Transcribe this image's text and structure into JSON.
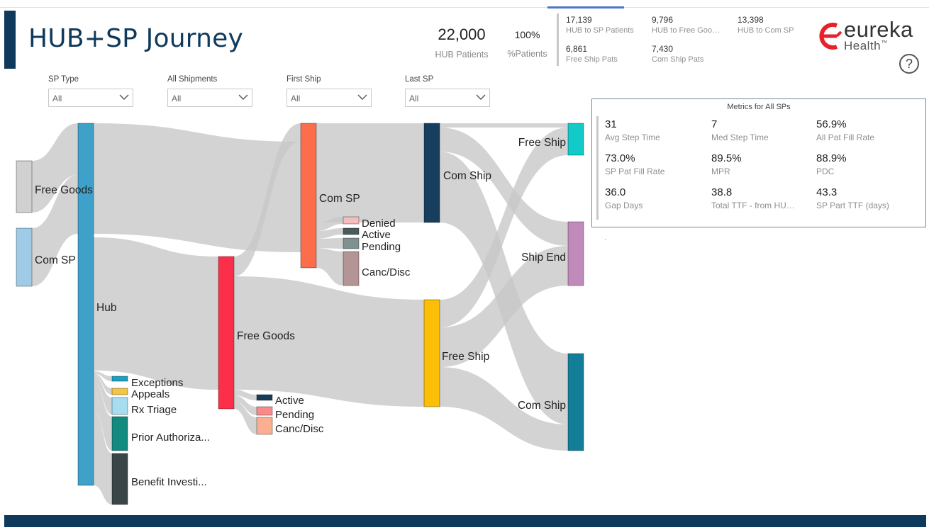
{
  "title": "HUB+SP Journey",
  "kpis": {
    "hub_patients": {
      "value": "22,000",
      "label": "HUB Patients"
    },
    "pct_patients": {
      "value": "100%",
      "label": "%Patients"
    },
    "small": [
      {
        "value": "17,139",
        "label": "HUB to SP Patients"
      },
      {
        "value": "9,796",
        "label": "HUB to Free Goo…"
      },
      {
        "value": "13,398",
        "label": "HUB to Com SP"
      },
      {
        "value": "6,861",
        "label": "Free Ship Pats"
      },
      {
        "value": "7,430",
        "label": "Com Ship Pats"
      }
    ]
  },
  "logo": {
    "line1": "eureka",
    "line2": "Health",
    "tm": "™"
  },
  "help_icon": "?",
  "slicers": [
    {
      "label": "SP Type",
      "value": "All"
    },
    {
      "label": "All Shipments",
      "value": "All"
    },
    {
      "label": "First Ship",
      "value": "All"
    },
    {
      "label": "Last SP",
      "value": "All"
    }
  ],
  "metrics": {
    "title": "Metrics for All SPs",
    "items": [
      {
        "value": "31",
        "label": "Avg Step Time"
      },
      {
        "value": "7",
        "label": "Med Step Time"
      },
      {
        "value": "56.9%",
        "label": "All Pat Fill Rate"
      },
      {
        "value": "73.0%",
        "label": "SP Pat Fill Rate"
      },
      {
        "value": "89.5%",
        "label": "MPR"
      },
      {
        "value": "88.9%",
        "label": "PDC"
      },
      {
        "value": "36.0",
        "label": "Gap Days"
      },
      {
        "value": "38.8",
        "label": "Total TTF - from HU…"
      },
      {
        "value": "43.3",
        "label": "SP Part TTF (days)"
      }
    ]
  },
  "stray_mark": "·",
  "colors": {
    "brand": "#0f3a5c",
    "link": "#c8c8c8",
    "logo_red": "#e8202a"
  },
  "chart_data": {
    "type": "sankey",
    "nodes": [
      {
        "id": "free_goods_src",
        "label": "Free Goods",
        "color": "#d0d0d0"
      },
      {
        "id": "com_sp_src",
        "label": "Com SP",
        "color": "#9fcbe6"
      },
      {
        "id": "hub",
        "label": "Hub",
        "color": "#3ea1c9"
      },
      {
        "id": "exceptions",
        "label": "Exceptions",
        "color": "#1e9ec2"
      },
      {
        "id": "appeals",
        "label": "Appeals",
        "color": "#f4c542"
      },
      {
        "id": "rx_triage",
        "label": "Rx Triage",
        "color": "#a8dcf0"
      },
      {
        "id": "prior_auth",
        "label": "Prior Authoriza...",
        "color": "#138a80"
      },
      {
        "id": "benefit_inv",
        "label": "Benefit Investi...",
        "color": "#394547"
      },
      {
        "id": "free_goods_mid",
        "label": "Free Goods",
        "color": "#fb2f4a"
      },
      {
        "id": "fg_active",
        "label": "Active",
        "color": "#1a3b5a"
      },
      {
        "id": "fg_pending",
        "label": "Pending",
        "color": "#f98a8a"
      },
      {
        "id": "fg_canc",
        "label": "Canc/Disc",
        "color": "#fbae90"
      },
      {
        "id": "com_sp_mid",
        "label": "Com SP",
        "color": "#fc6d4a"
      },
      {
        "id": "cs_denied",
        "label": "Denied",
        "color": "#f4bcbc"
      },
      {
        "id": "cs_active",
        "label": "Active",
        "color": "#4b5a5c"
      },
      {
        "id": "cs_pending",
        "label": "Pending",
        "color": "#7f9190"
      },
      {
        "id": "cs_canc",
        "label": "Canc/Disc",
        "color": "#b49494"
      },
      {
        "id": "com_ship_first",
        "label": "Com Ship",
        "color": "#183e5e"
      },
      {
        "id": "free_ship_first",
        "label": "Free Ship",
        "color": "#fbbf07"
      },
      {
        "id": "free_ship_last",
        "label": "Free Ship",
        "color": "#12cac8"
      },
      {
        "id": "ship_end",
        "label": "Ship End",
        "color": "#c08bbb"
      },
      {
        "id": "com_ship_last",
        "label": "Com Ship",
        "color": "#137e98"
      }
    ],
    "links": [
      {
        "source": "free_goods_src",
        "target": "hub"
      },
      {
        "source": "com_sp_src",
        "target": "hub"
      },
      {
        "source": "hub",
        "target": "com_sp_mid"
      },
      {
        "source": "hub",
        "target": "free_goods_mid"
      },
      {
        "source": "hub",
        "target": "exceptions"
      },
      {
        "source": "hub",
        "target": "appeals"
      },
      {
        "source": "hub",
        "target": "rx_triage"
      },
      {
        "source": "hub",
        "target": "prior_auth"
      },
      {
        "source": "hub",
        "target": "benefit_inv"
      },
      {
        "source": "free_goods_mid",
        "target": "com_sp_mid"
      },
      {
        "source": "free_goods_mid",
        "target": "free_ship_first"
      },
      {
        "source": "free_goods_mid",
        "target": "fg_active"
      },
      {
        "source": "free_goods_mid",
        "target": "fg_pending"
      },
      {
        "source": "free_goods_mid",
        "target": "fg_canc"
      },
      {
        "source": "com_sp_mid",
        "target": "com_ship_first"
      },
      {
        "source": "com_sp_mid",
        "target": "cs_denied"
      },
      {
        "source": "com_sp_mid",
        "target": "cs_active"
      },
      {
        "source": "com_sp_mid",
        "target": "cs_pending"
      },
      {
        "source": "com_sp_mid",
        "target": "cs_canc"
      },
      {
        "source": "com_ship_first",
        "target": "free_ship_last"
      },
      {
        "source": "com_ship_first",
        "target": "ship_end"
      },
      {
        "source": "com_ship_first",
        "target": "com_ship_last"
      },
      {
        "source": "free_ship_first",
        "target": "free_ship_last"
      },
      {
        "source": "free_ship_first",
        "target": "ship_end"
      },
      {
        "source": "free_ship_first",
        "target": "com_ship_last"
      }
    ]
  }
}
